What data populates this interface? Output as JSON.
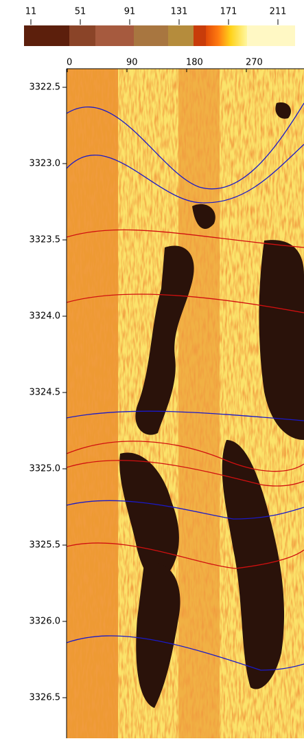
{
  "color_scale": {
    "ticks": [
      11,
      51,
      91,
      131,
      171,
      211
    ]
  },
  "azimuth_axis": {
    "ticks": [
      0,
      90,
      180,
      270
    ]
  },
  "depth_axis": {
    "ticks": [
      {
        "value": 3322.5,
        "label": "3322.5"
      },
      {
        "value": 3323,
        "label": "3323.0"
      },
      {
        "value": 3323.5,
        "label": "3323.5"
      },
      {
        "value": 3324,
        "label": "3324.0"
      },
      {
        "value": 3324.5,
        "label": "3324.5"
      },
      {
        "value": 3325,
        "label": "3325.0"
      },
      {
        "value": 3325.5,
        "label": "3325.5"
      },
      {
        "value": 3326,
        "label": "3326.0"
      },
      {
        "value": 3326.5,
        "label": "3326.5"
      }
    ]
  }
}
